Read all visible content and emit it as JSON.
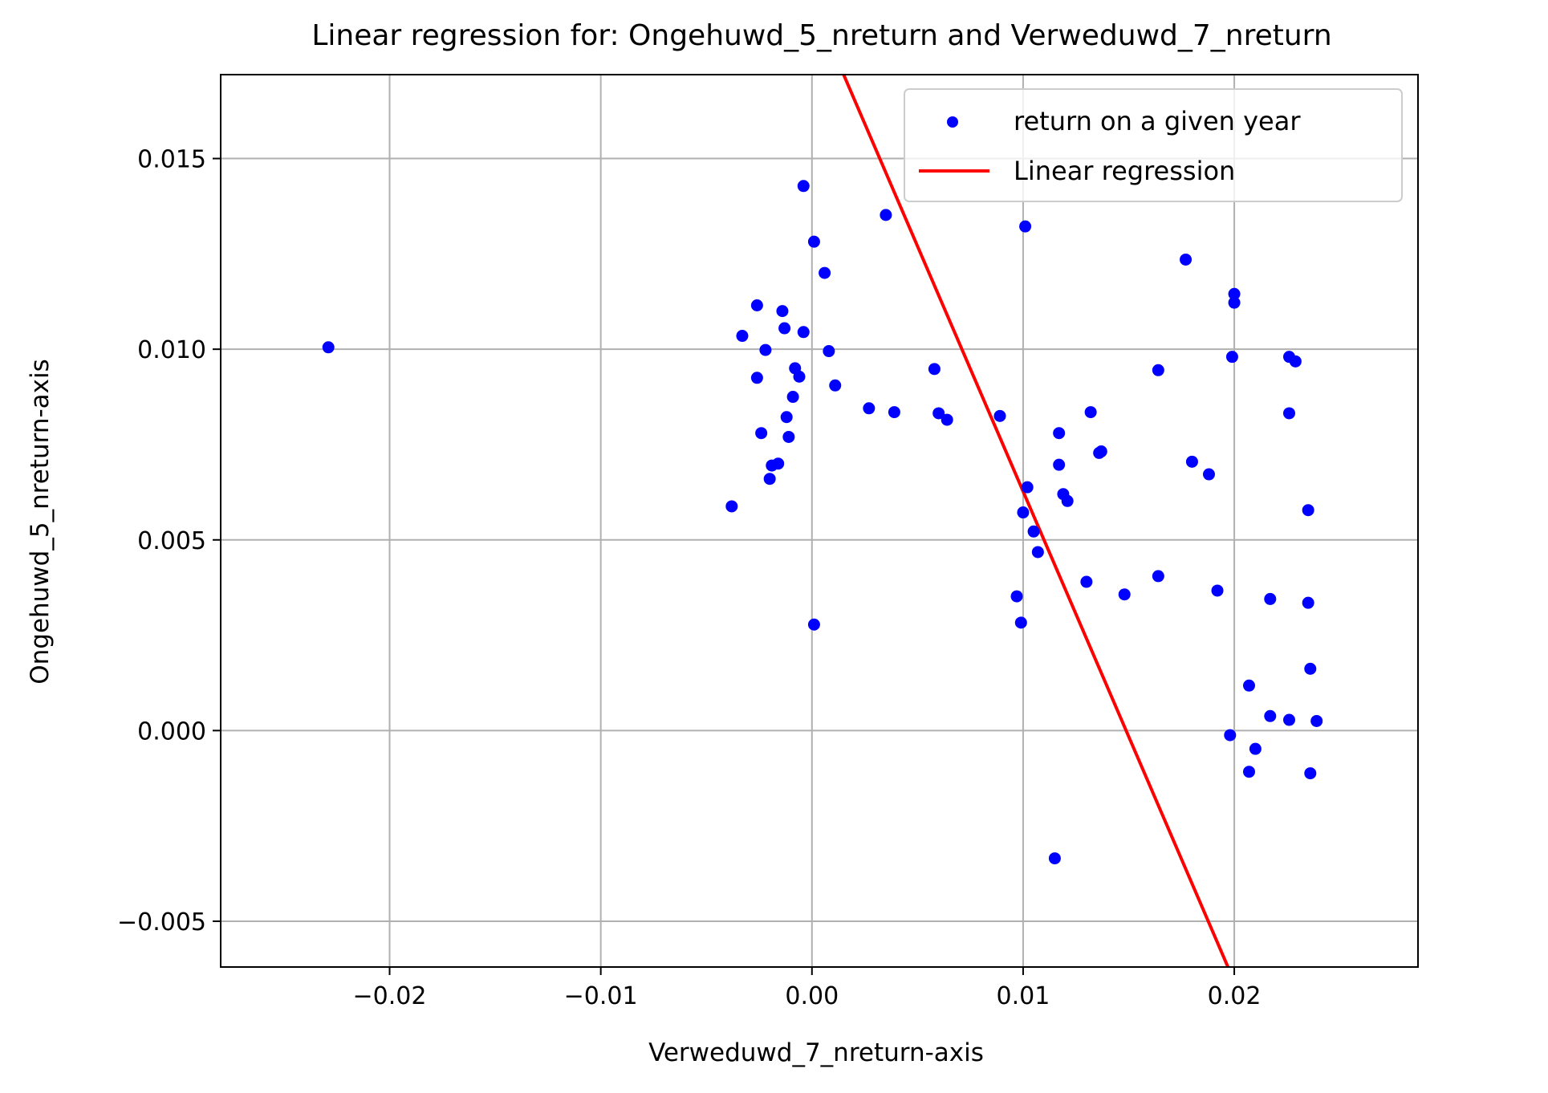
{
  "chart_data": {
    "type": "scatter",
    "title": "Linear regression for: Ongehuwd_5_nreturn and Verweduwd_7_nreturn",
    "xlabel": "Verweduwd_7_nreturn-axis",
    "ylabel": "Ongehuwd_5_nreturn-axis",
    "xlim": [
      -0.028,
      0.0287
    ],
    "ylim": [
      -0.0062,
      0.0172
    ],
    "xticks": [
      -0.02,
      -0.01,
      0.0,
      0.01,
      0.02
    ],
    "xtick_labels": [
      "−0.02",
      "−0.01",
      "0.00",
      "0.01",
      "0.02"
    ],
    "yticks": [
      -0.005,
      0.0,
      0.005,
      0.01,
      0.015
    ],
    "ytick_labels": [
      "−0.005",
      "0.000",
      "0.005",
      "0.010",
      "0.015"
    ],
    "grid": true,
    "legend_position": "top-right",
    "colors": {
      "points": "#0000ff",
      "line": "#ff0000",
      "grid": "#b0b0b0"
    },
    "series": [
      {
        "name": "return on a given year",
        "kind": "scatter",
        "points": [
          [
            -0.0229,
            0.01005
          ],
          [
            -0.0038,
            0.00588
          ],
          [
            -0.0033,
            0.01035
          ],
          [
            -0.0026,
            0.01115
          ],
          [
            -0.0026,
            0.00925
          ],
          [
            -0.0024,
            0.0078
          ],
          [
            -0.0022,
            0.00998
          ],
          [
            -0.002,
            0.0066
          ],
          [
            -0.0019,
            0.00695
          ],
          [
            -0.0016,
            0.007
          ],
          [
            -0.0014,
            0.011
          ],
          [
            -0.0013,
            0.01055
          ],
          [
            -0.0012,
            0.00822
          ],
          [
            -0.0011,
            0.0077
          ],
          [
            -0.0009,
            0.00875
          ],
          [
            -0.0008,
            0.0095
          ],
          [
            -0.0006,
            0.00928
          ],
          [
            -0.0004,
            0.01045
          ],
          [
            -0.0004,
            0.01428
          ],
          [
            0.0001,
            0.01282
          ],
          [
            0.0001,
            0.00278
          ],
          [
            0.0006,
            0.012
          ],
          [
            0.0008,
            0.00995
          ],
          [
            0.0011,
            0.00905
          ],
          [
            0.0027,
            0.00845
          ],
          [
            0.0035,
            0.01352
          ],
          [
            0.0039,
            0.00835
          ],
          [
            0.0058,
            0.00948
          ],
          [
            0.006,
            0.00832
          ],
          [
            0.0064,
            0.00815
          ],
          [
            0.0089,
            0.00825
          ],
          [
            0.0097,
            0.00352
          ],
          [
            0.0099,
            0.00283
          ],
          [
            0.01,
            0.00572
          ],
          [
            0.0101,
            0.01322
          ],
          [
            0.0102,
            0.00638
          ],
          [
            0.0105,
            0.00522
          ],
          [
            0.0107,
            0.00468
          ],
          [
            0.0115,
            -0.00335
          ],
          [
            0.0117,
            0.0078
          ],
          [
            0.0117,
            0.00697
          ],
          [
            0.0119,
            0.0062
          ],
          [
            0.0121,
            0.00602
          ],
          [
            0.013,
            0.0039
          ],
          [
            0.0132,
            0.00835
          ],
          [
            0.0136,
            0.00728
          ],
          [
            0.0137,
            0.00732
          ],
          [
            0.0148,
            0.00357
          ],
          [
            0.0164,
            0.00945
          ],
          [
            0.0164,
            0.00405
          ],
          [
            0.0177,
            0.01235
          ],
          [
            0.018,
            0.00705
          ],
          [
            0.0188,
            0.00672
          ],
          [
            0.0192,
            0.00367
          ],
          [
            0.0198,
            -0.00012
          ],
          [
            0.0199,
            0.0098
          ],
          [
            0.02,
            0.01145
          ],
          [
            0.02,
            0.01122
          ],
          [
            0.0207,
            0.00118
          ],
          [
            0.0207,
            -0.00108
          ],
          [
            0.021,
            -0.00048
          ],
          [
            0.0217,
            0.00038
          ],
          [
            0.0217,
            0.00345
          ],
          [
            0.0226,
            0.0098
          ],
          [
            0.0226,
            0.00832
          ],
          [
            0.0226,
            0.00028
          ],
          [
            0.0229,
            0.00968
          ],
          [
            0.0235,
            0.00578
          ],
          [
            0.0235,
            0.00335
          ],
          [
            0.0236,
            0.00162
          ],
          [
            0.0236,
            -0.00112
          ],
          [
            0.0239,
            0.00025
          ]
        ]
      },
      {
        "name": "Linear regression",
        "kind": "line",
        "points": [
          [
            0.0015,
            0.0172
          ],
          [
            0.0197,
            -0.0062
          ]
        ]
      }
    ]
  }
}
